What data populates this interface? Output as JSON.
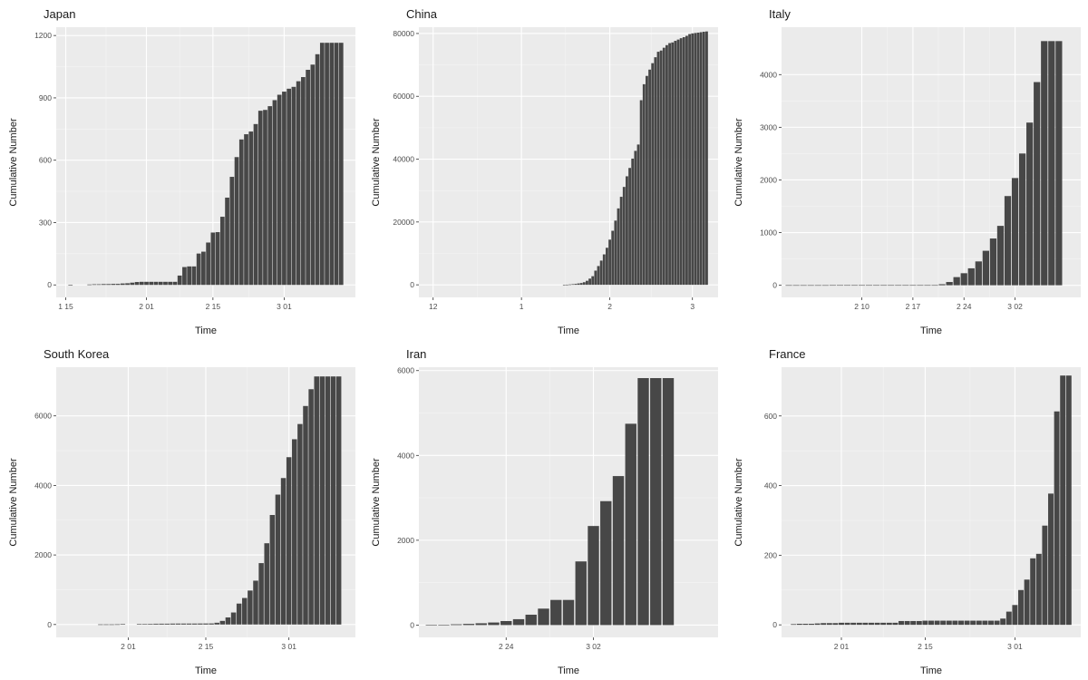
{
  "chart_data": [
    {
      "type": "bar",
      "title": "Japan",
      "xlabel": "Time",
      "ylabel": "Cumulative Number",
      "x_ticks": [
        {
          "label": "1 15",
          "day": 15
        },
        {
          "label": "2 01",
          "day": 32
        },
        {
          "label": "2 15",
          "day": 46
        },
        {
          "label": "3 01",
          "day": 61
        }
      ],
      "y_ticks": [
        0,
        300,
        600,
        900,
        1200
      ],
      "xlim": [
        13,
        76
      ],
      "ylim": [
        -60,
        1240
      ],
      "x_unit": "day of 2020 (Jan 1 = 1)",
      "series": [
        {
          "x": [
            16,
            20,
            21,
            22,
            23,
            24,
            25,
            26,
            27,
            28,
            29,
            30,
            31,
            32,
            33,
            34,
            35,
            36,
            37,
            38,
            39,
            40,
            41,
            42,
            43,
            44,
            45,
            46,
            47,
            48,
            49,
            50,
            51,
            52,
            53,
            54,
            55,
            56,
            57,
            58,
            59,
            60,
            61,
            62,
            63,
            64,
            65,
            66,
            67,
            68,
            69,
            70,
            71,
            72,
            73
          ],
          "values": [
            1,
            2,
            3,
            3,
            4,
            4,
            5,
            5,
            7,
            8,
            11,
            14,
            15,
            15,
            15,
            15,
            15,
            15,
            15,
            15,
            45,
            86,
            89,
            89,
            151,
            160,
            204,
            252,
            254,
            328,
            420,
            520,
            615,
            700,
            725,
            738,
            774,
            838,
            842,
            860,
            889,
            915,
            930,
            944,
            953,
            980,
            1000,
            1035,
            1060,
            1110,
            1165,
            1165,
            1165,
            1165,
            1165
          ]
        }
      ]
    },
    {
      "type": "bar",
      "title": "China",
      "xlabel": "Time",
      "ylabel": "Cumulative Number",
      "x_ticks": [
        {
          "label": "12",
          "day": -30
        },
        {
          "label": "1",
          "day": 1
        },
        {
          "label": "2",
          "day": 32
        },
        {
          "label": "3",
          "day": 61
        }
      ],
      "y_ticks": [
        0,
        20000,
        40000,
        60000,
        80000
      ],
      "xlim": [
        -35,
        70
      ],
      "ylim": [
        -4000,
        82000
      ],
      "x_unit": "day of 2020 (Jan 1 = 1)",
      "series": [
        {
          "x": [
            16,
            17,
            18,
            19,
            20,
            21,
            22,
            23,
            24,
            25,
            26,
            27,
            28,
            29,
            30,
            31,
            32,
            33,
            34,
            35,
            36,
            37,
            38,
            39,
            40,
            41,
            42,
            43,
            44,
            45,
            46,
            47,
            48,
            49,
            50,
            51,
            52,
            53,
            54,
            55,
            56,
            57,
            58,
            59,
            60,
            61,
            62,
            63,
            64,
            65,
            66
          ],
          "values": [
            45,
            62,
            121,
            198,
            291,
            440,
            571,
            830,
            1287,
            1975,
            2744,
            4515,
            5974,
            7711,
            9692,
            11791,
            14380,
            17205,
            20438,
            24324,
            28018,
            31161,
            34546,
            37198,
            40171,
            42638,
            44653,
            58761,
            63851,
            66492,
            68500,
            70548,
            72436,
            74185,
            74576,
            75465,
            76288,
            76936,
            77150,
            77658,
            78064,
            78497,
            78824,
            79251,
            79824,
            80026,
            80151,
            80270,
            80409,
            80552,
            80651
          ]
        }
      ]
    },
    {
      "type": "bar",
      "title": "Italy",
      "xlabel": "Time",
      "ylabel": "Cumulative Number",
      "x_ticks": [
        {
          "label": "2 10",
          "day": 41
        },
        {
          "label": "2 17",
          "day": 48
        },
        {
          "label": "2 24",
          "day": 55
        },
        {
          "label": "3 02",
          "day": 62
        }
      ],
      "y_ticks": [
        0,
        1000,
        2000,
        3000,
        4000
      ],
      "xlim": [
        30,
        71
      ],
      "ylim": [
        -230,
        4900
      ],
      "x_unit": "day of 2020 (Jan 1 = 1)",
      "series": [
        {
          "x": [
            31,
            32,
            33,
            34,
            35,
            36,
            37,
            38,
            39,
            40,
            41,
            42,
            43,
            44,
            45,
            46,
            47,
            48,
            49,
            50,
            51,
            52,
            53,
            54,
            55,
            56,
            57,
            58,
            59,
            60,
            61,
            62,
            63,
            64,
            65,
            66,
            67,
            68
          ],
          "values": [
            2,
            2,
            2,
            2,
            2,
            2,
            3,
            3,
            3,
            3,
            3,
            3,
            3,
            3,
            3,
            3,
            3,
            3,
            3,
            3,
            3,
            20,
            62,
            155,
            229,
            322,
            453,
            655,
            888,
            1128,
            1694,
            2036,
            2502,
            3089,
            3858,
            4636,
            4636,
            4636
          ]
        }
      ]
    },
    {
      "type": "bar",
      "title": "South Korea",
      "xlabel": "Time",
      "ylabel": "Cumulative Number",
      "x_ticks": [
        {
          "label": "2 01",
          "day": 32
        },
        {
          "label": "2 15",
          "day": 46
        },
        {
          "label": "3 01",
          "day": 61
        }
      ],
      "y_ticks": [
        0,
        2000,
        4000,
        6000
      ],
      "xlim": [
        19,
        73
      ],
      "ylim": [
        -370,
        7400
      ],
      "x_unit": "day of 2020 (Jan 1 = 1)",
      "series": [
        {
          "x": [
            27,
            28,
            29,
            30,
            31,
            34,
            35,
            36,
            37,
            38,
            39,
            40,
            41,
            42,
            43,
            44,
            45,
            46,
            47,
            48,
            49,
            50,
            51,
            52,
            53,
            54,
            55,
            56,
            57,
            58,
            59,
            60,
            61,
            62,
            63,
            64,
            65,
            66,
            67,
            68,
            69,
            70
          ],
          "values": [
            4,
            4,
            4,
            6,
            11,
            15,
            16,
            18,
            23,
            24,
            24,
            27,
            28,
            28,
            28,
            28,
            29,
            30,
            31,
            51,
            104,
            204,
            346,
            602,
            763,
            977,
            1261,
            1766,
            2337,
            3150,
            3736,
            4212,
            4812,
            5328,
            5766,
            6284,
            6767,
            7134,
            7134,
            7134,
            7134,
            7134
          ]
        }
      ]
    },
    {
      "type": "bar",
      "title": "Iran",
      "xlabel": "Time",
      "ylabel": "Cumulative Number",
      "x_ticks": [
        {
          "label": "2 24",
          "day": 55
        },
        {
          "label": "3 02",
          "day": 62
        }
      ],
      "y_ticks": [
        0,
        2000,
        4000,
        6000
      ],
      "xlim": [
        48,
        72
      ],
      "ylim": [
        -290,
        6080
      ],
      "x_unit": "day of 2020 (Jan 1 = 1)",
      "series": [
        {
          "x": [
            49,
            50,
            51,
            52,
            53,
            54,
            55,
            56,
            57,
            58,
            59,
            60,
            61,
            62,
            63,
            64,
            65,
            66,
            67,
            68
          ],
          "values": [
            2,
            5,
            18,
            28,
            43,
            61,
            95,
            139,
            245,
            388,
            593,
            593,
            1501,
            2336,
            2922,
            3513,
            4747,
            5823,
            5823,
            5823
          ]
        }
      ]
    },
    {
      "type": "bar",
      "title": "France",
      "xlabel": "Time",
      "ylabel": "Cumulative Number",
      "x_ticks": [
        {
          "label": "2 01",
          "day": 32
        },
        {
          "label": "2 15",
          "day": 46
        },
        {
          "label": "3 01",
          "day": 61
        }
      ],
      "y_ticks": [
        0,
        200,
        400,
        600
      ],
      "xlim": [
        22,
        72
      ],
      "ylim": [
        -36,
        740
      ],
      "x_unit": "day of 2020 (Jan 1 = 1)",
      "series": [
        {
          "x": [
            24,
            25,
            26,
            27,
            28,
            29,
            30,
            31,
            32,
            33,
            34,
            35,
            36,
            37,
            38,
            39,
            40,
            41,
            42,
            43,
            44,
            45,
            46,
            47,
            48,
            49,
            50,
            51,
            52,
            53,
            54,
            55,
            56,
            57,
            58,
            59,
            60,
            61,
            62,
            63,
            64,
            65,
            66,
            67,
            68,
            69,
            70
          ],
          "values": [
            2,
            3,
            3,
            3,
            4,
            5,
            5,
            5,
            6,
            6,
            6,
            6,
            6,
            6,
            6,
            6,
            6,
            6,
            11,
            11,
            11,
            11,
            12,
            12,
            12,
            12,
            12,
            12,
            12,
            12,
            12,
            12,
            12,
            12,
            12,
            18,
            38,
            57,
            100,
            130,
            191,
            204,
            285,
            377,
            613,
            716,
            716
          ]
        }
      ]
    }
  ]
}
